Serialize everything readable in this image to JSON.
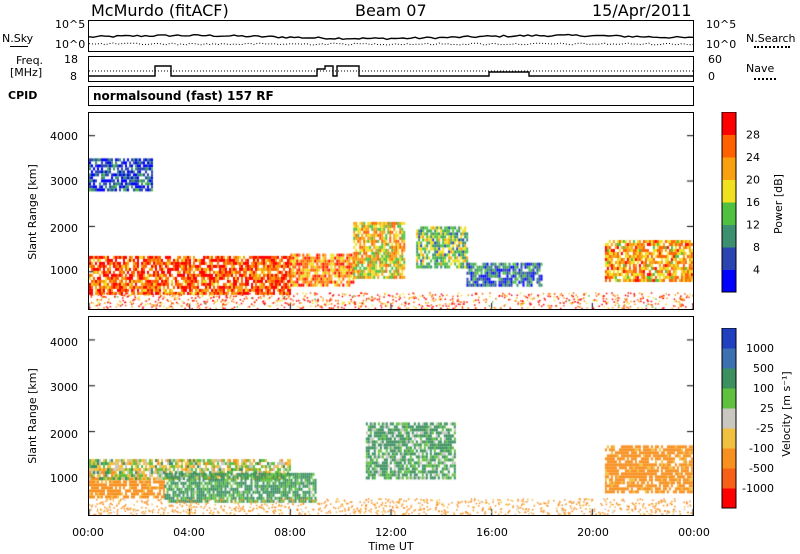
{
  "header": {
    "station": "McMurdo (fitACF)",
    "beam": "Beam 07",
    "date": "15/Apr/2011"
  },
  "top_panels": {
    "nsky_label": "N.Sky",
    "nsky_ticks": [
      "10^5",
      "10^0"
    ],
    "nsearch_label": "N.Search",
    "nsearch_ticks": [
      "10^5",
      "10^0"
    ],
    "freq_label_1": "Freq.",
    "freq_label_2": "[MHz]",
    "freq_ticks": [
      "18",
      "8"
    ],
    "nave_label": "Nave",
    "nave_ticks": [
      "60",
      "0"
    ],
    "cpid_label": "CPID",
    "cpid_value": "normalsound (fast) 157 RF"
  },
  "chart_data": [
    {
      "type": "heatmap",
      "name": "power",
      "ylabel": "Slant Range [km]",
      "yticks": [
        "1000",
        "2000",
        "3000",
        "4000"
      ],
      "ylim": [
        180,
        4500
      ],
      "colorbar": {
        "label": "Power [dB]",
        "ticks": [
          "4",
          "8",
          "12",
          "16",
          "20",
          "24",
          "28"
        ],
        "range": [
          0,
          32
        ],
        "colors": [
          "#0000ff",
          "#2a44b2",
          "#3c9070",
          "#4fc040",
          "#f0e020",
          "#f8a010",
          "#ff6000",
          "#ff0000"
        ]
      },
      "echo_regions": [
        {
          "t": [
            0.0,
            8.0
          ],
          "range_km": [
            550,
            1350
          ],
          "power_db": 26
        },
        {
          "t": [
            8.0,
            10.5
          ],
          "range_km": [
            700,
            1400
          ],
          "power_db": 24
        },
        {
          "t": [
            10.5,
            12.5
          ],
          "range_km": [
            900,
            2100
          ],
          "power_db": 20
        },
        {
          "t": [
            13.0,
            15.0
          ],
          "range_km": [
            1100,
            2000
          ],
          "power_db": 14
        },
        {
          "t": [
            15.0,
            18.0
          ],
          "range_km": [
            700,
            1200
          ],
          "power_db": 8
        },
        {
          "t": [
            20.5,
            24.0
          ],
          "range_km": [
            800,
            1700
          ],
          "power_db": 22
        },
        {
          "t": [
            0.0,
            2.5
          ],
          "range_km": [
            2800,
            3500
          ],
          "power_db": 6
        }
      ]
    },
    {
      "type": "heatmap",
      "name": "velocity",
      "ylabel": "Slant Range [km]",
      "yticks": [
        "1000",
        "2000",
        "3000",
        "4000"
      ],
      "ylim": [
        180,
        4500
      ],
      "xlabel": "Time UT",
      "xticks": [
        "00:00",
        "04:00",
        "08:00",
        "12:00",
        "16:00",
        "20:00",
        "00:00"
      ],
      "xlim": [
        0,
        24
      ],
      "colorbar": {
        "label": "Velocity [m s^-1]",
        "ticks": [
          "1000",
          "500",
          "100",
          "25",
          "-25",
          "-100",
          "-500",
          "-1000"
        ],
        "colors": [
          "#2040c0",
          "#3c70b0",
          "#3c9060",
          "#60c040",
          "#c8c8c0",
          "#f0c040",
          "#f89020",
          "#f86018",
          "#ff0000"
        ]
      },
      "echo_regions": [
        {
          "t": [
            0.0,
            3.0
          ],
          "range_km": [
            550,
            1000
          ],
          "velocity_ms": -200
        },
        {
          "t": [
            0.0,
            8.0
          ],
          "range_km": [
            1000,
            1400
          ],
          "velocity_ms": 0
        },
        {
          "t": [
            3.0,
            9.0
          ],
          "range_km": [
            450,
            1100
          ],
          "velocity_ms": 150
        },
        {
          "t": [
            11.0,
            14.5
          ],
          "range_km": [
            1000,
            2200
          ],
          "velocity_ms": 120
        },
        {
          "t": [
            20.5,
            24.0
          ],
          "range_km": [
            700,
            1700
          ],
          "velocity_ms": -200
        }
      ]
    }
  ]
}
